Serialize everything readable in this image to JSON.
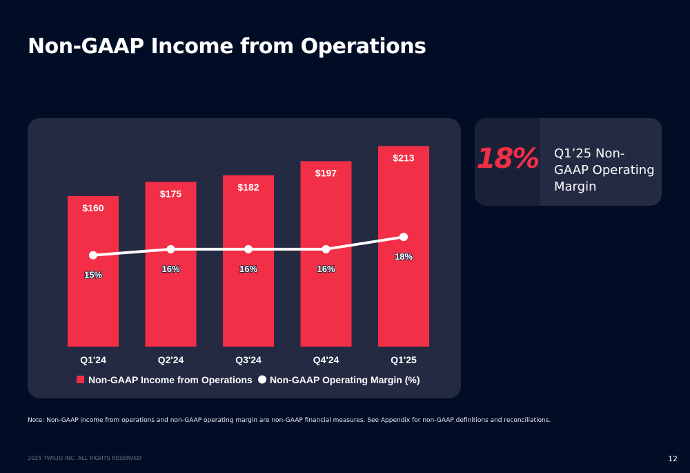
{
  "header": {
    "title": "Non-GAAP Income from Operations"
  },
  "stat_card": {
    "value": "18%",
    "label": "Q1’25 Non-GAAP Operating Margin"
  },
  "note": "Note: Non-GAAP income from operations and non-GAAP operating margin are non-GAAP financial measures. See Appendix for non-GAAP definitions and reconciliations.",
  "footer": {
    "copyright": "2025 TWILIO INC. ALL RIGHTS RESERVED",
    "page_number": "12"
  },
  "chart_data": {
    "type": "bar",
    "categories": [
      "Q1'24",
      "Q2'24",
      "Q3'24",
      "Q4'24",
      "Q1'25"
    ],
    "series": [
      {
        "name": "Non-GAAP Income from Operations",
        "type": "bar",
        "values": [
          160,
          175,
          182,
          197,
          213
        ],
        "labels": [
          "$160",
          "$175",
          "$182",
          "$197",
          "$213"
        ],
        "color": "#f22f46"
      },
      {
        "name": "Non-GAAP Operating Margin (%)",
        "type": "line",
        "values": [
          15,
          16,
          16,
          16,
          18
        ],
        "labels": [
          "15%",
          "16%",
          "16%",
          "16%",
          "18%"
        ],
        "color": "#ffffff"
      }
    ],
    "ylim": [
      0,
      220
    ],
    "y2lim": [
      0,
      34
    ],
    "legend_placement": "bottom",
    "grid": false
  }
}
